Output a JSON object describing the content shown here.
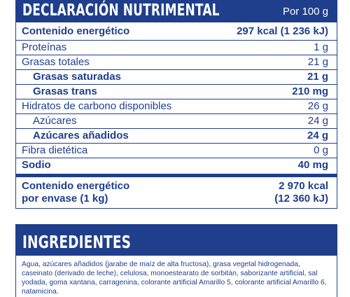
{
  "nutrition": {
    "title": "DECLARACIÓN NUTRIMENTAL",
    "per": "Por 100 g",
    "rows": [
      {
        "label": "Contenido energético",
        "value": "297 kcal (1 236 kJ)"
      },
      {
        "label": "Proteínas",
        "value": "1 g"
      },
      {
        "label": "Grasas totales",
        "value": "21 g"
      },
      {
        "label": "Grasas saturadas",
        "value": "21 g"
      },
      {
        "label": "Grasas trans",
        "value": "210 mg"
      },
      {
        "label": "Hidratos de carbono disponibles",
        "value": "26 g"
      },
      {
        "label": "Azúcares",
        "value": "24 g"
      },
      {
        "label": "Azúcares añadidos",
        "value": "24 g"
      },
      {
        "label": "Fibra dietética",
        "value": "0 g"
      },
      {
        "label": "Sodio",
        "value": "40 mg"
      }
    ],
    "package": {
      "label_line1": "Contenido energético",
      "label_line2": "por envase (1 kg)",
      "value_line1": "2 970 kcal",
      "value_line2": "(12 360 kJ)"
    }
  },
  "ingredients": {
    "title": "INGREDIENTES",
    "text": "Agua, azúcares añadidos (jarabe de maíz de alta fructosa), grasa vegetal hidrogenada, caseinato (derivado de leche), celulosa, monoestearato de sorbitán, saborizante artificial, sal yodada, goma xantana, carragenina, colorante artificial Amarillo 5, colorante artificial Amarillo 6, natamicina."
  },
  "colors": {
    "brand_blue": "#1f3f8c",
    "background": "#ffffff"
  }
}
